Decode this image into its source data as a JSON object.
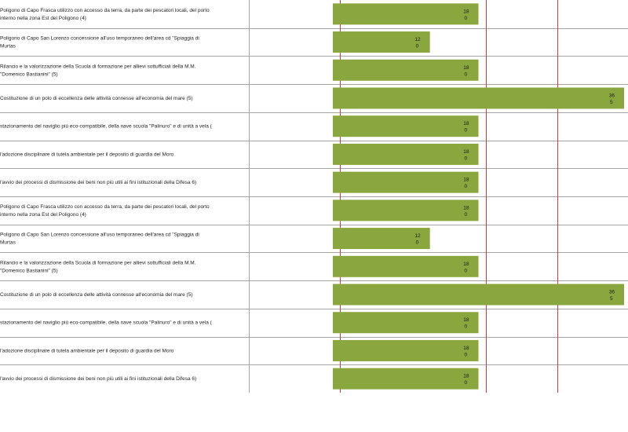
{
  "chart_data": {
    "type": "bar",
    "orientation": "horizontal",
    "grid": true,
    "bar_color": "#8aa63f",
    "grid_color": "#d33a3a",
    "separator_color": "#a6a6a6",
    "xlim": [
      0,
      36
    ],
    "rows": [
      {
        "label_lines": [
          "Poligono di Capo Frasca  utilizzo con accesso da terra, da parte dei pescatori locali, del porto",
          "interno nella zona Est del Poligono (4)"
        ],
        "value": 18,
        "value_label": "18",
        "sub_label": "0"
      },
      {
        "label_lines": [
          "Poligono di Capo San Lorenzo concessione all'uso temporaneo dell'area cd \"Spiaggia di",
          "Murtas"
        ],
        "value": 12,
        "value_label": "12",
        "sub_label": "0"
      },
      {
        "label_lines": [
          "Rilancio e la valorizzazione della Scuola di formazione per allievi sottufficiali della M.M.",
          "\"Domenico Bastianini\" (5)"
        ],
        "value": 18,
        "value_label": "18",
        "sub_label": "0"
      },
      {
        "label_lines": [
          "Costituzione di un polo di eccellenza delle attività connesse all'economia del mare (5)"
        ],
        "value": 36,
        "value_label": "36",
        "sub_label": "5"
      },
      {
        "label_lines": [
          "stazionamento del naviglio più eco-compatibile, della nave scuola \"Palinuro\" e di unità a vela  ("
        ],
        "value": 18,
        "value_label": "18",
        "sub_label": "0"
      },
      {
        "label_lines": [
          "l'adozione disciplinare di tutela ambientale per il deposito di guardia del Moro"
        ],
        "value": 18,
        "value_label": "18",
        "sub_label": "0"
      },
      {
        "label_lines": [
          "l'avvio dei processi di dismissione dei beni non più utili ai fini istituzionali della Difesa 6)"
        ],
        "value": 18,
        "value_label": "18",
        "sub_label": "0"
      },
      {
        "label_lines": [
          "Poligono di Capo Frasca  utilizzo con accesso da terra, da parte dei pescatori locali, del porto",
          "interno nella zona Est del Poligono (4)"
        ],
        "value": 18,
        "value_label": "18",
        "sub_label": "0"
      },
      {
        "label_lines": [
          "Poligono di Capo San Lorenzo concessione all'uso temporaneo dell'area cd \"Spiaggia di",
          "Murtas"
        ],
        "value": 12,
        "value_label": "12",
        "sub_label": "0"
      },
      {
        "label_lines": [
          "Rilancio e la valorizzazione della Scuola di formazione per allievi sottufficiali della M.M.",
          "\"Domenico Bastianini\" (5)"
        ],
        "value": 18,
        "value_label": "18",
        "sub_label": "0"
      },
      {
        "label_lines": [
          "Costituzione di un polo di eccellenza delle attività connesse all'economia del mare (5)"
        ],
        "value": 36,
        "value_label": "36",
        "sub_label": "5"
      },
      {
        "label_lines": [
          "stazionamento del naviglio più eco-compatibile, della nave scuola \"Palinuro\" e di unità a vela  ("
        ],
        "value": 18,
        "value_label": "18",
        "sub_label": "0"
      },
      {
        "label_lines": [
          "l'adozione disciplinare di tutela ambientale per il deposito di guardia del Moro"
        ],
        "value": 18,
        "value_label": "18",
        "sub_label": "0"
      },
      {
        "label_lines": [
          "l'avvio dei processi di dismissione dei beni non più utili ai fini istituzionali della Difesa 6)"
        ],
        "value": 18,
        "value_label": "18",
        "sub_label": "0"
      }
    ]
  }
}
